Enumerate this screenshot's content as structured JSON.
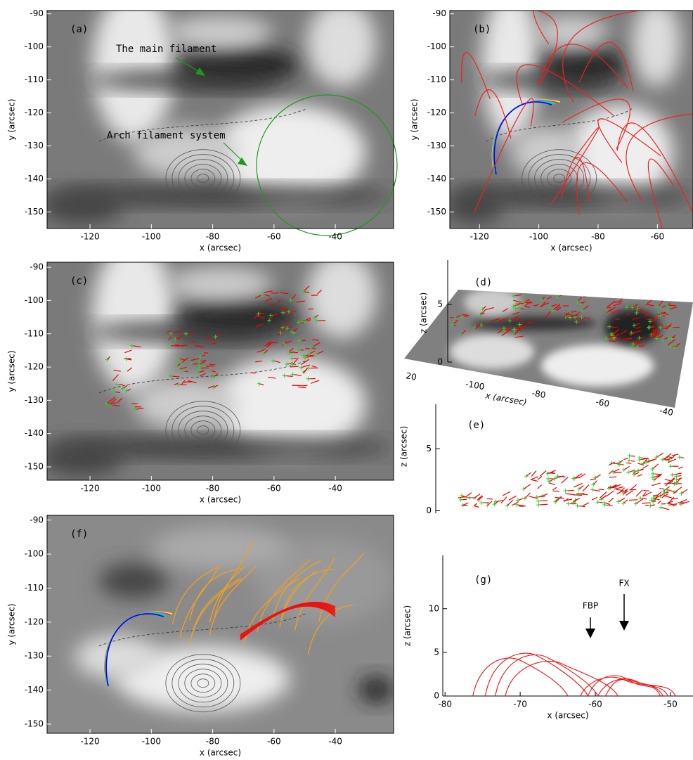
{
  "chart_data": [
    {
      "type": "image",
      "panel_label": "(a)",
      "xlabel": "x (arcsec)",
      "ylabel": "y (arcsec)",
      "xlim": [
        -134,
        -21
      ],
      "ylim": [
        -155,
        -89
      ],
      "xticks": [
        -120,
        -100,
        -80,
        -60,
        -40
      ],
      "yticks": [
        -90,
        -100,
        -110,
        -120,
        -130,
        -140,
        -150
      ],
      "annotations": [
        "The main filament",
        "Arch filament system"
      ]
    },
    {
      "type": "image",
      "panel_label": "(b)",
      "xlabel": "x (arcsec)",
      "ylabel": "y (arcsec)",
      "xlim": [
        -130,
        -48
      ],
      "ylim": [
        -155,
        -89
      ],
      "xticks": [
        -120,
        -100,
        -80,
        -60
      ],
      "yticks": [
        -90,
        -100,
        -110,
        -120,
        -130,
        -140,
        -150
      ]
    },
    {
      "type": "image",
      "panel_label": "(c)",
      "xlabel": "x (arcsec)",
      "ylabel": "y (arcsec)",
      "xlim": [
        -134,
        -21
      ],
      "ylim": [
        -154,
        -88.5
      ],
      "xticks": [
        -120,
        -100,
        -80,
        -60,
        -40
      ],
      "yticks": [
        -90,
        -100,
        -110,
        -120,
        -130,
        -140,
        -150
      ]
    },
    {
      "type": "surface-3d",
      "panel_label": "(d)",
      "xlabel": "x (arcsec)",
      "zlabel": "z (arcsec)",
      "xticks": [
        {
          "value": -120,
          "label": "20"
        },
        -100,
        -80,
        -60,
        -40
      ],
      "zticks": [
        0,
        5
      ]
    },
    {
      "type": "side-view",
      "panel_label": "(e)",
      "ylabel": "z (arcsec)",
      "ylim": [
        -0.2,
        8.6
      ],
      "yticks": [
        0,
        5
      ]
    },
    {
      "type": "image",
      "panel_label": "(f)",
      "xlabel": "x (arcsec)",
      "ylabel": "y (arcsec)",
      "xlim": [
        -134,
        -21
      ],
      "ylim": [
        -152.7,
        -88.6
      ],
      "xticks": [
        -120,
        -100,
        -80,
        -60,
        -40
      ],
      "yticks": [
        -90,
        -100,
        -110,
        -120,
        -130,
        -140,
        -150
      ]
    },
    {
      "type": "line",
      "panel_label": "(g)",
      "xlabel": "x (arcsec)",
      "ylabel": "z (arcsec)",
      "xlim": [
        -80.3,
        -47
      ],
      "ylim": [
        0,
        16.1
      ],
      "xticks": [
        -80,
        -70,
        -60,
        -50
      ],
      "yticks": [
        0,
        5,
        10
      ],
      "annotations": [
        "FBP",
        "FX"
      ]
    }
  ]
}
